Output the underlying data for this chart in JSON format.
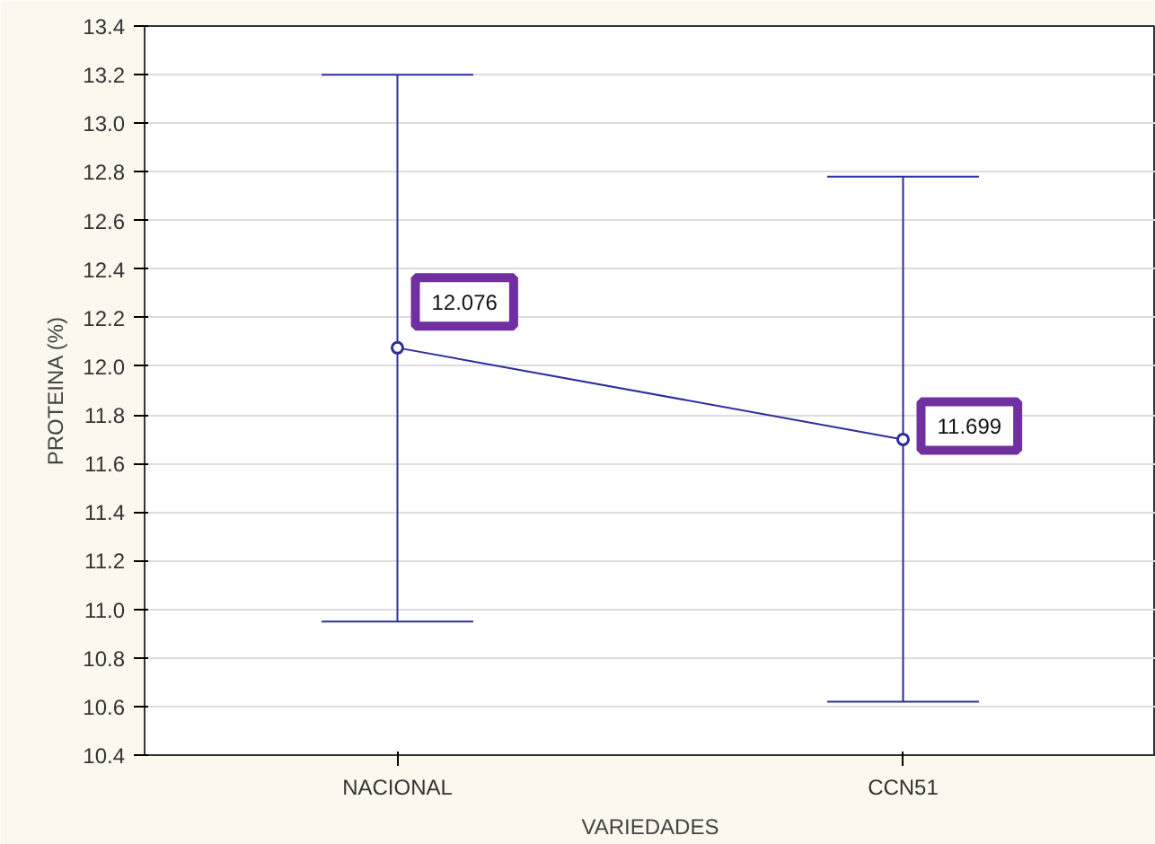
{
  "chart_data": {
    "type": "line",
    "xlabel": "VARIEDADES",
    "ylabel": "PROTEINA (%)",
    "categories": [
      "NACIONAL",
      "CCN51"
    ],
    "color": "#2e2e9a",
    "values": [
      12.076,
      11.699
    ],
    "errors": [
      [
        10.95,
        13.2
      ],
      [
        10.62,
        12.78
      ]
    ],
    "data_labels": true,
    "marker": "circle",
    "line_style": "solid",
    "ylim": [
      10.4,
      13.4
    ],
    "yticks": [
      {
        "value": 10.4,
        "label": "10.4"
      },
      {
        "value": 10.6,
        "label": "10.6"
      },
      {
        "value": 10.8,
        "label": "10.8"
      },
      {
        "value": 11.0,
        "label": "11.0"
      },
      {
        "value": 11.2,
        "label": "11.2"
      },
      {
        "value": 11.4,
        "label": "11.4"
      },
      {
        "value": 11.6,
        "label": "11.6"
      },
      {
        "value": 11.8,
        "label": "11.8"
      },
      {
        "value": 12.0,
        "label": "12.0"
      },
      {
        "value": 12.2,
        "label": "12.2"
      },
      {
        "value": 12.4,
        "label": "12.4"
      },
      {
        "value": 12.6,
        "label": "12.6"
      },
      {
        "value": 12.8,
        "label": "12.8"
      },
      {
        "value": 13.0,
        "label": "13.0"
      },
      {
        "value": 13.2,
        "label": "13.2"
      },
      {
        "value": 13.4,
        "label": "13.4"
      }
    ],
    "grid": "y"
  }
}
